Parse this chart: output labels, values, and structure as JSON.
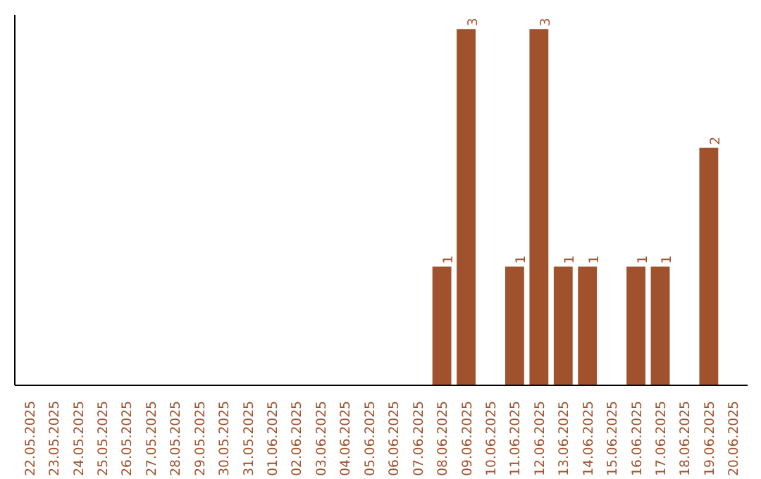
{
  "chart_data": {
    "type": "bar",
    "categories": [
      "22.05.2025",
      "23.05.2025",
      "24.05.2025",
      "25.05.2025",
      "26.05.2025",
      "27.05.2025",
      "28.05.2025",
      "29.05.2025",
      "30.05.2025",
      "31.05.2025",
      "01.06.2025",
      "02.06.2025",
      "03.06.2025",
      "04.06.2025",
      "05.06.2025",
      "06.06.2025",
      "07.06.2025",
      "08.06.2025",
      "09.06.2025",
      "10.06.2025",
      "11.06.2025",
      "12.06.2025",
      "13.06.2025",
      "14.06.2025",
      "15.06.2025",
      "16.06.2025",
      "17.06.2025",
      "18.06.2025",
      "19.06.2025",
      "20.06.2025"
    ],
    "values": [
      null,
      null,
      null,
      null,
      null,
      null,
      null,
      null,
      null,
      null,
      null,
      null,
      null,
      null,
      null,
      null,
      null,
      1,
      3,
      null,
      1,
      3,
      1,
      1,
      null,
      1,
      1,
      null,
      2,
      null
    ],
    "value_labels": [
      null,
      null,
      null,
      null,
      null,
      null,
      null,
      null,
      null,
      null,
      null,
      null,
      null,
      null,
      null,
      null,
      null,
      "1",
      "3",
      null,
      "1",
      "3",
      "1",
      "1",
      null,
      "1",
      "1",
      null,
      "2",
      null
    ],
    "color": "#a0522d",
    "grid": false
  }
}
